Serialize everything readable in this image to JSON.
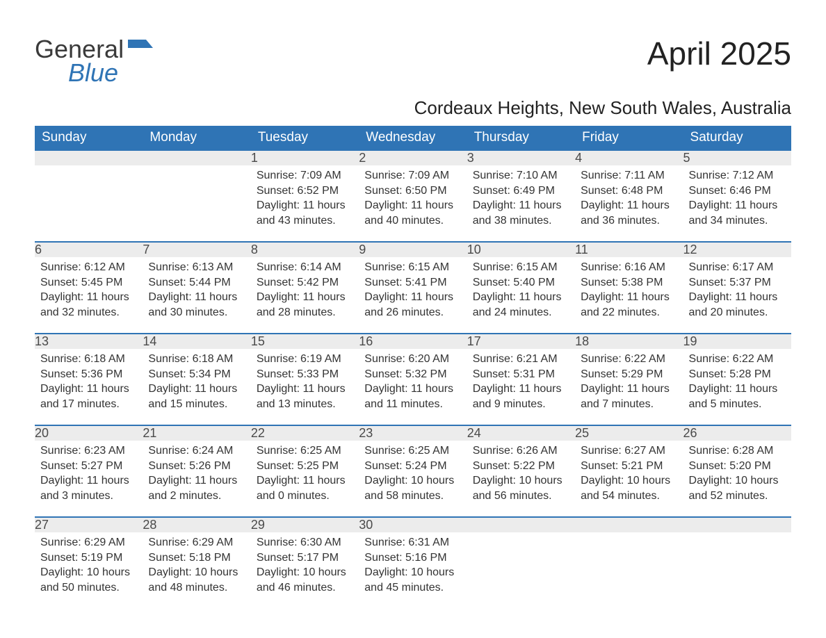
{
  "logo": {
    "general": "General",
    "blue": "Blue"
  },
  "title": "April 2025",
  "location": "Cordeaux Heights, New South Wales, Australia",
  "header_bg": "#2f74b5",
  "header_fg": "#ffffff",
  "daynum_bg": "#ececec",
  "row_border": "#2f74b5",
  "weekdays": [
    "Sunday",
    "Monday",
    "Tuesday",
    "Wednesday",
    "Thursday",
    "Friday",
    "Saturday"
  ],
  "weeks": [
    [
      null,
      null,
      {
        "n": "1",
        "sr": "7:09 AM",
        "ss": "6:52 PM",
        "dl": "11 hours and 43 minutes."
      },
      {
        "n": "2",
        "sr": "7:09 AM",
        "ss": "6:50 PM",
        "dl": "11 hours and 40 minutes."
      },
      {
        "n": "3",
        "sr": "7:10 AM",
        "ss": "6:49 PM",
        "dl": "11 hours and 38 minutes."
      },
      {
        "n": "4",
        "sr": "7:11 AM",
        "ss": "6:48 PM",
        "dl": "11 hours and 36 minutes."
      },
      {
        "n": "5",
        "sr": "7:12 AM",
        "ss": "6:46 PM",
        "dl": "11 hours and 34 minutes."
      }
    ],
    [
      {
        "n": "6",
        "sr": "6:12 AM",
        "ss": "5:45 PM",
        "dl": "11 hours and 32 minutes."
      },
      {
        "n": "7",
        "sr": "6:13 AM",
        "ss": "5:44 PM",
        "dl": "11 hours and 30 minutes."
      },
      {
        "n": "8",
        "sr": "6:14 AM",
        "ss": "5:42 PM",
        "dl": "11 hours and 28 minutes."
      },
      {
        "n": "9",
        "sr": "6:15 AM",
        "ss": "5:41 PM",
        "dl": "11 hours and 26 minutes."
      },
      {
        "n": "10",
        "sr": "6:15 AM",
        "ss": "5:40 PM",
        "dl": "11 hours and 24 minutes."
      },
      {
        "n": "11",
        "sr": "6:16 AM",
        "ss": "5:38 PM",
        "dl": "11 hours and 22 minutes."
      },
      {
        "n": "12",
        "sr": "6:17 AM",
        "ss": "5:37 PM",
        "dl": "11 hours and 20 minutes."
      }
    ],
    [
      {
        "n": "13",
        "sr": "6:18 AM",
        "ss": "5:36 PM",
        "dl": "11 hours and 17 minutes."
      },
      {
        "n": "14",
        "sr": "6:18 AM",
        "ss": "5:34 PM",
        "dl": "11 hours and 15 minutes."
      },
      {
        "n": "15",
        "sr": "6:19 AM",
        "ss": "5:33 PM",
        "dl": "11 hours and 13 minutes."
      },
      {
        "n": "16",
        "sr": "6:20 AM",
        "ss": "5:32 PM",
        "dl": "11 hours and 11 minutes."
      },
      {
        "n": "17",
        "sr": "6:21 AM",
        "ss": "5:31 PM",
        "dl": "11 hours and 9 minutes."
      },
      {
        "n": "18",
        "sr": "6:22 AM",
        "ss": "5:29 PM",
        "dl": "11 hours and 7 minutes."
      },
      {
        "n": "19",
        "sr": "6:22 AM",
        "ss": "5:28 PM",
        "dl": "11 hours and 5 minutes."
      }
    ],
    [
      {
        "n": "20",
        "sr": "6:23 AM",
        "ss": "5:27 PM",
        "dl": "11 hours and 3 minutes."
      },
      {
        "n": "21",
        "sr": "6:24 AM",
        "ss": "5:26 PM",
        "dl": "11 hours and 2 minutes."
      },
      {
        "n": "22",
        "sr": "6:25 AM",
        "ss": "5:25 PM",
        "dl": "11 hours and 0 minutes."
      },
      {
        "n": "23",
        "sr": "6:25 AM",
        "ss": "5:24 PM",
        "dl": "10 hours and 58 minutes."
      },
      {
        "n": "24",
        "sr": "6:26 AM",
        "ss": "5:22 PM",
        "dl": "10 hours and 56 minutes."
      },
      {
        "n": "25",
        "sr": "6:27 AM",
        "ss": "5:21 PM",
        "dl": "10 hours and 54 minutes."
      },
      {
        "n": "26",
        "sr": "6:28 AM",
        "ss": "5:20 PM",
        "dl": "10 hours and 52 minutes."
      }
    ],
    [
      {
        "n": "27",
        "sr": "6:29 AM",
        "ss": "5:19 PM",
        "dl": "10 hours and 50 minutes."
      },
      {
        "n": "28",
        "sr": "6:29 AM",
        "ss": "5:18 PM",
        "dl": "10 hours and 48 minutes."
      },
      {
        "n": "29",
        "sr": "6:30 AM",
        "ss": "5:17 PM",
        "dl": "10 hours and 46 minutes."
      },
      {
        "n": "30",
        "sr": "6:31 AM",
        "ss": "5:16 PM",
        "dl": "10 hours and 45 minutes."
      },
      null,
      null,
      null
    ]
  ],
  "labels": {
    "sunrise": "Sunrise: ",
    "sunset": "Sunset: ",
    "daylight": "Daylight: "
  }
}
